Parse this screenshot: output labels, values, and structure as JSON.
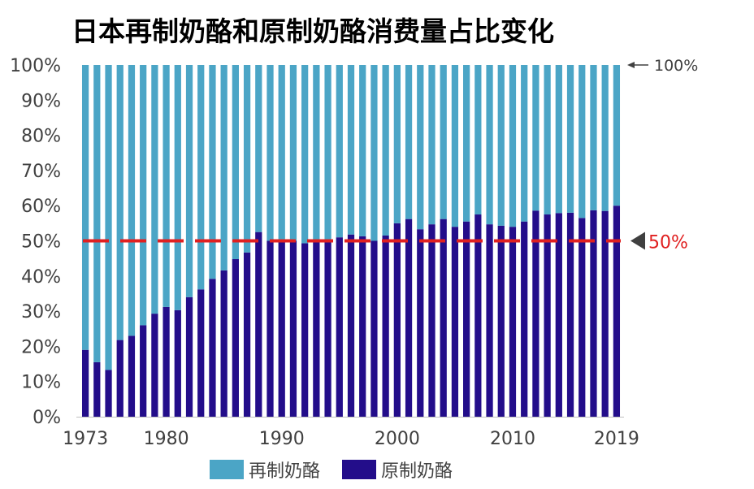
{
  "chart_data": {
    "type": "bar",
    "stacked": true,
    "title": "日本再制奶酪和原制奶酪消费量占比变化",
    "xlabel": "",
    "ylabel": "",
    "ylim": [
      0,
      100
    ],
    "y_ticks": [
      "0%",
      "10%",
      "20%",
      "30%",
      "40%",
      "50%",
      "60%",
      "70%",
      "80%",
      "90%",
      "100%"
    ],
    "x_tick_labels": [
      "1973",
      "1980",
      "1990",
      "2000",
      "2010",
      "2019"
    ],
    "categories": [
      "1973",
      "1974",
      "1975",
      "1976",
      "1977",
      "1978",
      "1979",
      "1980",
      "1981",
      "1982",
      "1983",
      "1984",
      "1985",
      "1986",
      "1987",
      "1988",
      "1989",
      "1990",
      "1991",
      "1992",
      "1993",
      "1994",
      "1995",
      "1996",
      "1997",
      "1998",
      "1999",
      "2000",
      "2001",
      "2002",
      "2003",
      "2004",
      "2005",
      "2006",
      "2007",
      "2008",
      "2009",
      "2010",
      "2011",
      "2012",
      "2013",
      "2014",
      "2015",
      "2016",
      "2017",
      "2018",
      "2019"
    ],
    "series": [
      {
        "name": "原制奶酪",
        "color": "#230d8a",
        "values": [
          19,
          15.5,
          13.3,
          21.8,
          23,
          26,
          29.3,
          31.2,
          30.3,
          34,
          36.2,
          39.2,
          41.6,
          44.8,
          46.7,
          52.5,
          50,
          50,
          50,
          49.3,
          50,
          50,
          51,
          51.8,
          51.3,
          50,
          51.5,
          55,
          56.2,
          53.3,
          54.7,
          56.2,
          54,
          55.5,
          57.5,
          54.7,
          54.3,
          54,
          55.5,
          58.6,
          57.5,
          57.9,
          58,
          56.5,
          58.7,
          58.5,
          60
        ]
      },
      {
        "name": "再制奶酪",
        "color": "#4ba5c6",
        "values": [
          81,
          84.5,
          86.7,
          78.2,
          77,
          74,
          70.7,
          68.8,
          69.7,
          66,
          63.8,
          60.8,
          58.4,
          55.2,
          53.3,
          47.5,
          50,
          50,
          50,
          50.7,
          50,
          50,
          49,
          48.2,
          48.7,
          50,
          48.5,
          45,
          43.8,
          46.7,
          45.3,
          43.8,
          46,
          44.5,
          42.5,
          45.3,
          45.7,
          46,
          44.5,
          41.4,
          42.5,
          42.1,
          42,
          43.5,
          41.3,
          41.5,
          40
        ]
      }
    ],
    "reference_line": {
      "value": 50,
      "label": "50%",
      "color": "#e02020"
    },
    "top_annotation": {
      "value": 100,
      "label": "100%"
    },
    "legend_position": "bottom",
    "grid": false
  }
}
